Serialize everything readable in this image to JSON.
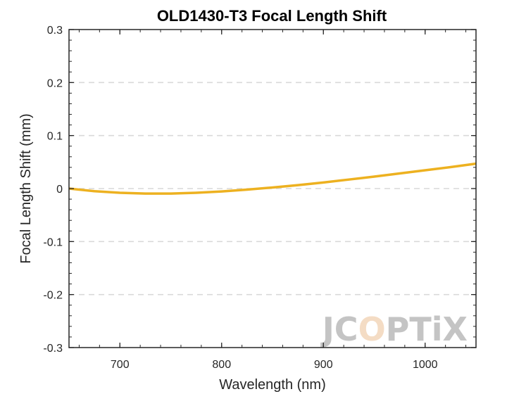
{
  "chart_data": {
    "type": "line",
    "title": "OLD1430-T3 Focal Length Shift",
    "xlabel": "Wavelength (nm)",
    "ylabel": "Focal Length Shift (mm)",
    "xlim": [
      650,
      1050
    ],
    "ylim": [
      -0.3,
      0.3
    ],
    "xticks": [
      700,
      800,
      900,
      1000
    ],
    "yticks": [
      -0.3,
      -0.2,
      -0.1,
      0,
      0.1,
      0.2,
      0.3
    ],
    "ytick_labels": [
      "-0.3",
      "-0.2",
      "-0.1",
      "0",
      "0.1",
      "0.2",
      "0.3"
    ],
    "grid": "horizontal dashed",
    "series": [
      {
        "color": "#EDB120",
        "x": [
          650,
          675,
          700,
          725,
          750,
          775,
          800,
          825,
          850,
          875,
          900,
          925,
          950,
          975,
          1000,
          1025,
          1050
        ],
        "y": [
          0.0,
          -0.005,
          -0.008,
          -0.0095,
          -0.0095,
          -0.008,
          -0.0055,
          -0.002,
          0.002,
          0.0065,
          0.0115,
          0.017,
          0.0225,
          0.0285,
          0.0345,
          0.0405,
          0.047
        ]
      }
    ]
  },
  "watermark": {
    "parts": [
      {
        "text": "JC",
        "color": "#c4c4c4"
      },
      {
        "text": "O",
        "color": "#f4dcc4"
      },
      {
        "text": "PTiX",
        "color": "#c4c4c4"
      }
    ]
  }
}
